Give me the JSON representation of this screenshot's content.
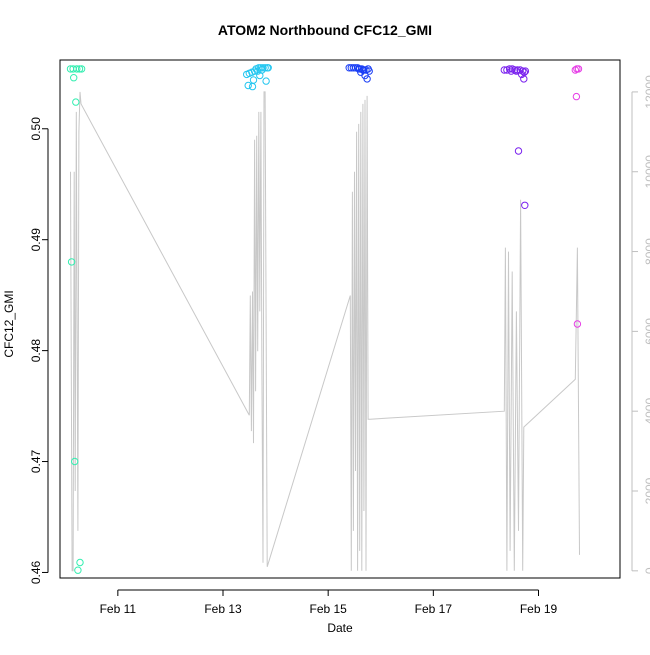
{
  "chart_data": {
    "type": "scatter",
    "title": "ATOM2 Northbound CFC12_GMI",
    "xlabel": "Date",
    "ylabel": "CFC12_GMI",
    "x_unit": "days in February",
    "xlim": [
      9.9,
      20.55
    ],
    "ylim": [
      0.4595,
      0.5062
    ],
    "y_right_lim": [
      -180,
      12800
    ],
    "x_ticks": [
      {
        "value": 11,
        "label": "Feb 11"
      },
      {
        "value": 13,
        "label": "Feb 13"
      },
      {
        "value": 15,
        "label": "Feb 15"
      },
      {
        "value": 17,
        "label": "Feb 17"
      },
      {
        "value": 19,
        "label": "Feb 19"
      }
    ],
    "y_ticks": [
      {
        "value": 0.46,
        "label": "0.46"
      },
      {
        "value": 0.47,
        "label": "0.47"
      },
      {
        "value": 0.48,
        "label": "0.48"
      },
      {
        "value": 0.49,
        "label": "0.49"
      },
      {
        "value": 0.5,
        "label": "0.50"
      }
    ],
    "y_right_ticks": [
      {
        "value": 0,
        "label": "0"
      },
      {
        "value": 2000,
        "label": "2000"
      },
      {
        "value": 4000,
        "label": "4000"
      },
      {
        "value": 6000,
        "label": "6000"
      },
      {
        "value": 8000,
        "label": "8000"
      },
      {
        "value": 10000,
        "label": "10000"
      },
      {
        "value": 12000,
        "label": "12000"
      }
    ],
    "grid": false,
    "series": [
      {
        "color": "#33eeb0",
        "points": [
          [
            10.12,
            0.488
          ],
          [
            10.16,
            0.5046
          ],
          [
            10.2,
            0.5024
          ],
          [
            10.18,
            0.47
          ],
          [
            10.28,
            0.4609
          ],
          [
            10.24,
            0.4602
          ],
          [
            10.1,
            0.5054
          ],
          [
            10.15,
            0.5054
          ],
          [
            10.22,
            0.5054
          ],
          [
            10.27,
            0.5054
          ],
          [
            10.31,
            0.5054
          ]
        ]
      },
      {
        "color": "#22c6f0",
        "points": [
          [
            13.45,
            0.5049
          ],
          [
            13.5,
            0.505
          ],
          [
            13.55,
            0.5051
          ],
          [
            13.6,
            0.5052
          ],
          [
            13.63,
            0.5054
          ],
          [
            13.68,
            0.5055
          ],
          [
            13.72,
            0.5055
          ],
          [
            13.76,
            0.5055
          ],
          [
            13.8,
            0.5055
          ],
          [
            13.84,
            0.5055
          ],
          [
            13.48,
            0.5039
          ],
          [
            13.56,
            0.5038
          ],
          [
            13.58,
            0.5044
          ],
          [
            13.7,
            0.5048
          ],
          [
            13.66,
            0.5052
          ],
          [
            13.74,
            0.5053
          ],
          [
            13.82,
            0.5043
          ],
          [
            13.86,
            0.5055
          ]
        ]
      },
      {
        "color": "#1a3ef5",
        "points": [
          [
            15.4,
            0.5055
          ],
          [
            15.44,
            0.5055
          ],
          [
            15.48,
            0.5055
          ],
          [
            15.52,
            0.5055
          ],
          [
            15.56,
            0.5055
          ],
          [
            15.6,
            0.5054
          ],
          [
            15.64,
            0.5054
          ],
          [
            15.68,
            0.5053
          ],
          [
            15.72,
            0.5053
          ],
          [
            15.76,
            0.5054
          ],
          [
            15.78,
            0.5052
          ],
          [
            15.62,
            0.5051
          ],
          [
            15.7,
            0.5048
          ],
          [
            15.74,
            0.5045
          ],
          [
            15.66,
            0.5053
          ],
          [
            15.58,
            0.5054
          ]
        ]
      },
      {
        "color": "#7a22ee",
        "points": [
          [
            18.35,
            0.5053
          ],
          [
            18.4,
            0.5053
          ],
          [
            18.45,
            0.5054
          ],
          [
            18.5,
            0.5054
          ],
          [
            18.55,
            0.5053
          ],
          [
            18.6,
            0.5053
          ],
          [
            18.65,
            0.5053
          ],
          [
            18.7,
            0.5052
          ],
          [
            18.73,
            0.5051
          ],
          [
            18.75,
            0.5052
          ],
          [
            18.68,
            0.5049
          ],
          [
            18.72,
            0.5045
          ],
          [
            18.62,
            0.498
          ],
          [
            18.74,
            0.4931
          ],
          [
            18.58,
            0.5052
          ],
          [
            18.48,
            0.5052
          ]
        ]
      },
      {
        "color": "#e63ee6",
        "points": [
          [
            19.7,
            0.5053
          ],
          [
            19.73,
            0.5054
          ],
          [
            19.76,
            0.5054
          ],
          [
            19.72,
            0.5029
          ],
          [
            19.74,
            0.4824
          ]
        ]
      }
    ],
    "line_series": {
      "axis": "right",
      "color": "#c8c8c8",
      "points": [
        [
          10.1,
          10000
        ],
        [
          10.13,
          0
        ],
        [
          10.15,
          0
        ],
        [
          10.17,
          10000
        ],
        [
          10.19,
          2000
        ],
        [
          10.21,
          11500
        ],
        [
          10.24,
          1000
        ],
        [
          10.26,
          11000
        ],
        [
          10.28,
          12000
        ],
        [
          10.3,
          11700
        ],
        [
          13.5,
          3900
        ],
        [
          13.52,
          6900
        ],
        [
          13.54,
          3500
        ],
        [
          13.56,
          7000
        ],
        [
          13.58,
          3200
        ],
        [
          13.6,
          10800
        ],
        [
          13.62,
          4500
        ],
        [
          13.64,
          10900
        ],
        [
          13.66,
          5500
        ],
        [
          13.68,
          11500
        ],
        [
          13.7,
          6500
        ],
        [
          13.72,
          11500
        ],
        [
          13.74,
          5000
        ],
        [
          13.76,
          200
        ],
        [
          13.78,
          12000
        ],
        [
          13.8,
          12000
        ],
        [
          13.84,
          100
        ],
        [
          15.42,
          6900
        ],
        [
          15.44,
          0
        ],
        [
          15.46,
          9500
        ],
        [
          15.48,
          1000
        ],
        [
          15.5,
          10000
        ],
        [
          15.52,
          2500
        ],
        [
          15.54,
          11000
        ],
        [
          15.56,
          0
        ],
        [
          15.58,
          11200
        ],
        [
          15.6,
          500
        ],
        [
          15.62,
          11500
        ],
        [
          15.64,
          0
        ],
        [
          15.66,
          11700
        ],
        [
          15.68,
          1500
        ],
        [
          15.7,
          11800
        ],
        [
          15.72,
          0
        ],
        [
          15.74,
          11900
        ],
        [
          15.76,
          3800
        ],
        [
          15.8,
          3800
        ],
        [
          18.35,
          4000
        ],
        [
          18.37,
          8100
        ],
        [
          18.4,
          0
        ],
        [
          18.43,
          8000
        ],
        [
          18.46,
          500
        ],
        [
          18.5,
          7500
        ],
        [
          18.54,
          0
        ],
        [
          18.58,
          6500
        ],
        [
          18.62,
          1000
        ],
        [
          18.66,
          9300
        ],
        [
          18.7,
          0
        ],
        [
          18.72,
          3600
        ],
        [
          19.7,
          4800
        ],
        [
          19.74,
          8100
        ],
        [
          19.78,
          400
        ]
      ]
    }
  }
}
